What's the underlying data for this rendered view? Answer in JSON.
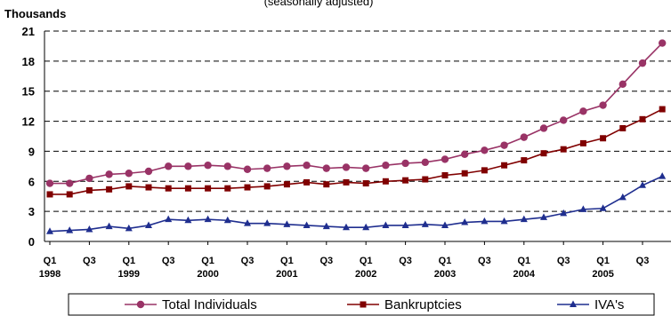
{
  "chart_data": {
    "type": "line",
    "title_fragment": "(seasonally adjusted)",
    "unit_label": "Thousands",
    "ylim": [
      0,
      21
    ],
    "y_ticks": [
      "0",
      "3",
      "6",
      "9",
      "12",
      "15",
      "18",
      "21"
    ],
    "grid": "dashed horizontal",
    "legend_position": "bottom",
    "x_quarters": [
      "1998 Q1",
      "1998 Q2",
      "1998 Q3",
      "1998 Q4",
      "1999 Q1",
      "1999 Q2",
      "1999 Q3",
      "1999 Q4",
      "2000 Q1",
      "2000 Q2",
      "2000 Q3",
      "2000 Q4",
      "2001 Q1",
      "2001 Q2",
      "2001 Q3",
      "2001 Q4",
      "2002 Q1",
      "2002 Q2",
      "2002 Q3",
      "2002 Q4",
      "2003 Q1",
      "2003 Q2",
      "2003 Q3",
      "2003 Q4",
      "2004 Q1",
      "2004 Q2",
      "2004 Q3",
      "2004 Q4",
      "2005 Q1",
      "2005 Q2",
      "2005 Q3",
      "2005 Q4"
    ],
    "x_tick_labels": [
      {
        "quarter": "Q1",
        "year": "1998"
      },
      {
        "quarter": "Q3",
        "year": ""
      },
      {
        "quarter": "Q1",
        "year": "1999"
      },
      {
        "quarter": "Q3",
        "year": ""
      },
      {
        "quarter": "Q1",
        "year": "2000"
      },
      {
        "quarter": "Q3",
        "year": ""
      },
      {
        "quarter": "Q1",
        "year": "2001"
      },
      {
        "quarter": "Q3",
        "year": ""
      },
      {
        "quarter": "Q1",
        "year": "2002"
      },
      {
        "quarter": "Q3",
        "year": ""
      },
      {
        "quarter": "Q1",
        "year": "2003"
      },
      {
        "quarter": "Q3",
        "year": ""
      },
      {
        "quarter": "Q1",
        "year": "2004"
      },
      {
        "quarter": "Q3",
        "year": ""
      },
      {
        "quarter": "Q1",
        "year": "2005"
      },
      {
        "quarter": "Q3",
        "year": ""
      }
    ],
    "series": [
      {
        "name": "Total Individuals",
        "color": "#993366",
        "marker": "circle",
        "values": [
          5.8,
          5.8,
          6.3,
          6.7,
          6.8,
          7.0,
          7.5,
          7.5,
          7.6,
          7.5,
          7.2,
          7.3,
          7.5,
          7.6,
          7.3,
          7.4,
          7.3,
          7.6,
          7.8,
          7.9,
          8.2,
          8.7,
          9.1,
          9.6,
          10.4,
          11.3,
          12.1,
          13.0,
          13.6,
          15.7,
          17.8,
          19.8
        ]
      },
      {
        "name": "Bankruptcies",
        "color": "#800000",
        "marker": "square",
        "values": [
          4.7,
          4.7,
          5.1,
          5.2,
          5.5,
          5.4,
          5.3,
          5.3,
          5.3,
          5.3,
          5.4,
          5.5,
          5.7,
          5.9,
          5.7,
          5.9,
          5.8,
          6.0,
          6.1,
          6.2,
          6.6,
          6.8,
          7.1,
          7.6,
          8.1,
          8.8,
          9.2,
          9.8,
          10.3,
          11.3,
          12.2,
          13.2
        ]
      },
      {
        "name": "IVA's",
        "color": "#1F2E8F",
        "marker": "triangle",
        "values": [
          1.0,
          1.1,
          1.2,
          1.5,
          1.3,
          1.6,
          2.2,
          2.1,
          2.2,
          2.1,
          1.8,
          1.8,
          1.7,
          1.6,
          1.5,
          1.4,
          1.4,
          1.6,
          1.6,
          1.7,
          1.6,
          1.9,
          2.0,
          2.0,
          2.2,
          2.4,
          2.8,
          3.2,
          3.3,
          4.4,
          5.6,
          6.5
        ]
      }
    ]
  }
}
